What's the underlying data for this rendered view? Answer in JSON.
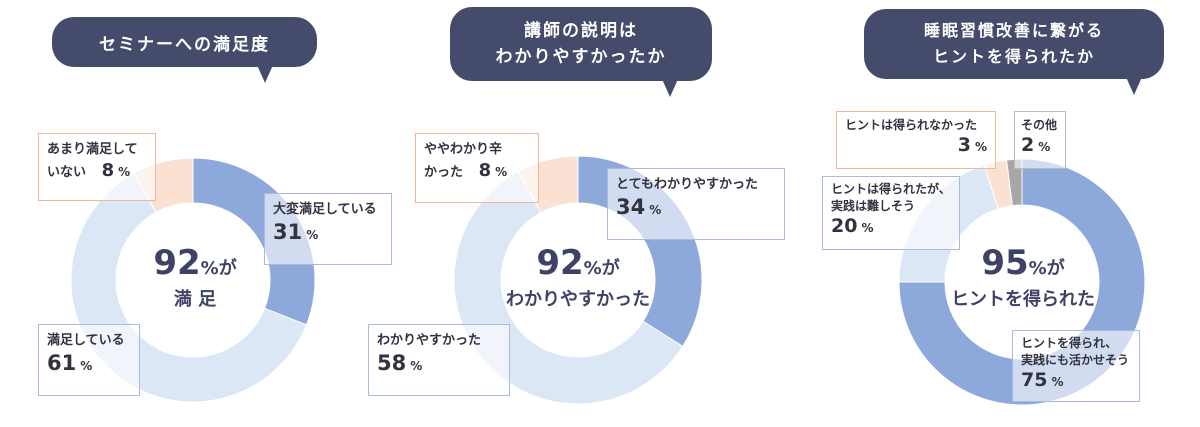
{
  "colors": {
    "bubble": "#454b6b",
    "dark_blue": "#8da9dc",
    "light_blue": "#dce7f5",
    "peach": "#fbe1d2",
    "gray": "#a7a7a7"
  },
  "panels": [
    {
      "title_lines": [
        "セミナーへの満足度"
      ],
      "center": {
        "value": "92",
        "unit": "%",
        "suffix": "が",
        "line2": "満 足"
      },
      "callouts": [
        {
          "label_lines": [
            "あまり満足して",
            "いない"
          ],
          "value": "8",
          "unit": "%"
        },
        {
          "label_lines": [
            "大変満足している"
          ],
          "value": "31",
          "unit": "%"
        },
        {
          "label_lines": [
            "満足している"
          ],
          "value": "61",
          "unit": "%"
        }
      ]
    },
    {
      "title_lines": [
        "講師の説明は",
        "わかりやすかったか"
      ],
      "center": {
        "value": "92",
        "unit": "%",
        "suffix": "が",
        "line2": "わかりやすかった"
      },
      "callouts": [
        {
          "label_lines": [
            "ややわかり辛",
            "かった"
          ],
          "value": "8",
          "unit": "%"
        },
        {
          "label_lines": [
            "とてもわかりやすかった"
          ],
          "value": "34",
          "unit": "%"
        },
        {
          "label_lines": [
            "わかりやすかった"
          ],
          "value": "58",
          "unit": "%"
        }
      ]
    },
    {
      "title_lines": [
        "睡眠習慣改善に繋がる",
        "ヒントを得られたか"
      ],
      "center": {
        "value": "95",
        "unit": "%",
        "suffix": "が",
        "line2": "ヒントを得られた"
      },
      "callouts": [
        {
          "label_lines": [
            "ヒントは得られなかった"
          ],
          "value": "3",
          "unit": "%"
        },
        {
          "label_lines": [
            "その他"
          ],
          "value": "2",
          "unit": "%"
        },
        {
          "label_lines": [
            "ヒントは得られたが、",
            "実践は難しそう"
          ],
          "value": "20",
          "unit": "%"
        },
        {
          "label_lines": [
            "ヒントを得られ、",
            "実践にも活かせそう"
          ],
          "value": "75",
          "unit": "%"
        }
      ]
    }
  ],
  "chart_data": [
    {
      "type": "pie",
      "title": "セミナーへの満足度",
      "categories": [
        "大変満足している",
        "満足している",
        "あまり満足していない"
      ],
      "values": [
        31,
        61,
        8
      ],
      "colors": [
        "#8da9dc",
        "#dce7f5",
        "#fbe1d2"
      ]
    },
    {
      "type": "pie",
      "title": "講師の説明はわかりやすかったか",
      "categories": [
        "とてもわかりやすかった",
        "わかりやすかった",
        "ややわかり辛かった"
      ],
      "values": [
        34,
        58,
        8
      ],
      "colors": [
        "#8da9dc",
        "#dce7f5",
        "#fbe1d2"
      ]
    },
    {
      "type": "pie",
      "title": "睡眠習慣改善に繋がるヒントを得られたか",
      "categories": [
        "ヒントを得られ、実践にも活かせそう",
        "ヒントは得られたが、実践は難しそう",
        "ヒントは得られなかった",
        "その他"
      ],
      "values": [
        75,
        20,
        3,
        2
      ],
      "colors": [
        "#8da9dc",
        "#dce7f5",
        "#fbe1d2",
        "#a7a7a7"
      ]
    }
  ]
}
